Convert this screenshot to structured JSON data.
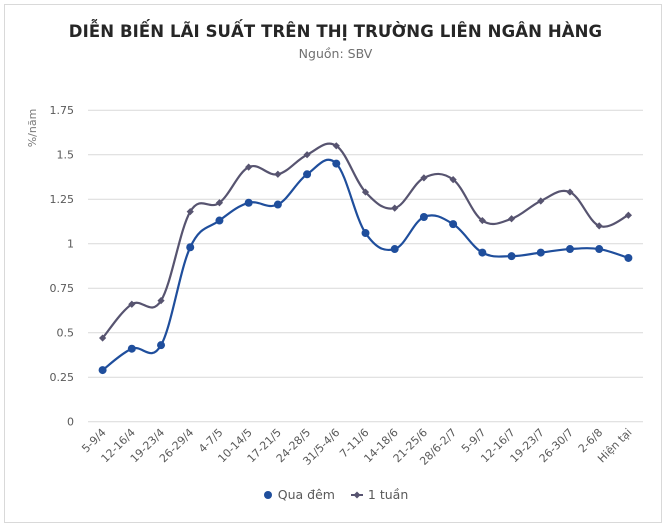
{
  "title": "DIỄN BIẾN LÃI SUẤT TRÊN THỊ TRƯỜNG LIÊN NGÂN HÀNG",
  "subtitle": "Nguồn: SBV",
  "colors": {
    "overnight": "#1f4e9c",
    "one_week": "#575470",
    "grid": "#d9d9d9",
    "border": "#d9d9d9"
  },
  "legend": {
    "items": [
      {
        "label": "Qua đêm",
        "marker": "circle",
        "color": "#1f4e9c"
      },
      {
        "label": "1 tuần",
        "marker": "diamond",
        "color": "#575470"
      }
    ]
  },
  "chart_data": {
    "type": "line",
    "title": "DIỄN BIẾN LÃI SUẤT TRÊN THỊ TRƯỜNG LIÊN NGÂN HÀNG",
    "subtitle": "Nguồn: SBV",
    "xlabel": "",
    "ylabel": "%/năm",
    "ylim": [
      0,
      1.75
    ],
    "yticks": [
      0,
      0.25,
      0.5,
      0.75,
      1,
      1.25,
      1.5,
      1.75
    ],
    "ytick_labels": [
      "0",
      "0.25",
      "0.5",
      "0.75",
      "1",
      "1.25",
      "1.5",
      "1.75"
    ],
    "grid": true,
    "legend_position": "bottom",
    "categories": [
      "5-9/4",
      "12-16/4",
      "19-23/4",
      "26-29/4",
      "4-7/5",
      "10-14/5",
      "17-21/5",
      "24-28/5",
      "31/5-4/6",
      "7-11/6",
      "14-18/6",
      "21-25/6",
      "28/6-2/7",
      "5-9/7",
      "12-16/7",
      "19-23/7",
      "26-30/7",
      "2-6/8",
      "Hiện tại"
    ],
    "series": [
      {
        "name": "Qua đêm",
        "marker": "circle",
        "color": "#1f4e9c",
        "smooth": true,
        "values": [
          0.29,
          0.41,
          0.43,
          0.98,
          1.13,
          1.23,
          1.22,
          1.39,
          1.45,
          1.06,
          0.97,
          1.15,
          1.11,
          0.95,
          0.93,
          0.95,
          0.97,
          0.97,
          0.92
        ]
      },
      {
        "name": "1 tuần",
        "marker": "diamond",
        "color": "#575470",
        "smooth": true,
        "values": [
          0.47,
          0.66,
          0.68,
          1.18,
          1.23,
          1.43,
          1.39,
          1.5,
          1.55,
          1.29,
          1.2,
          1.37,
          1.36,
          1.13,
          1.14,
          1.24,
          1.29,
          1.1,
          1.16
        ]
      }
    ]
  }
}
